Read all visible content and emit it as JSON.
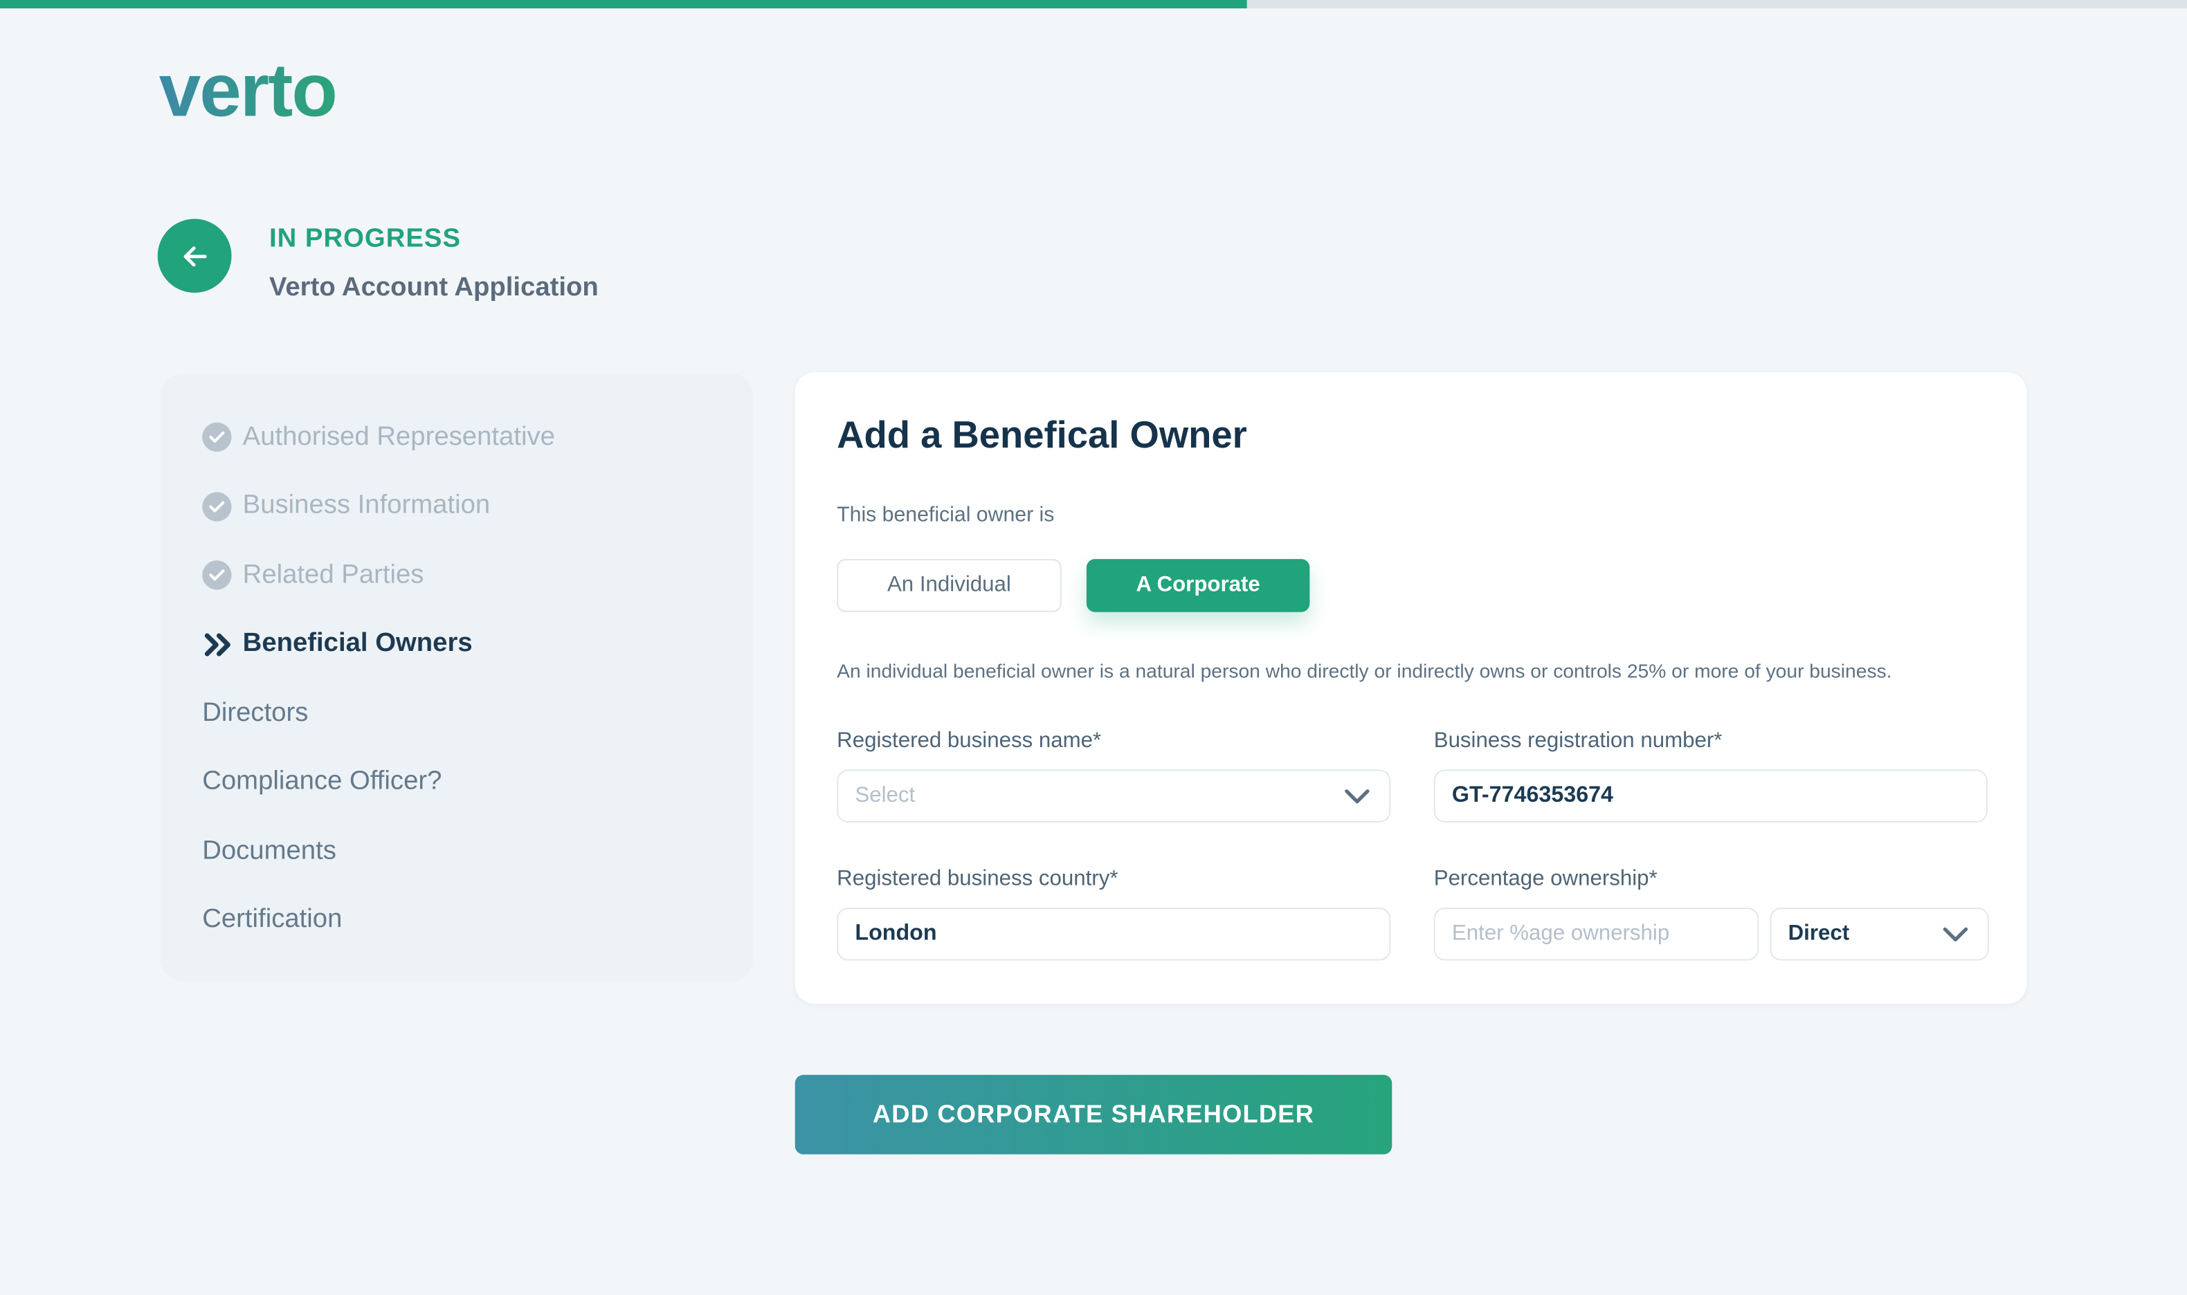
{
  "colors": {
    "accent_green": "#21a37c",
    "progress_track": "#dce3e9",
    "logo_gradient_start": "#3e89a6",
    "logo_gradient_end": "#2ba478",
    "cta_gradient_start": "#3b93a6",
    "cta_gradient_end": "#27a47c",
    "active_step_text": "#1d3a52",
    "completed_step_text": "#a9b6c2"
  },
  "progress": {
    "percent": 57
  },
  "brand": {
    "logo_text": "verto"
  },
  "header": {
    "status": "IN PROGRESS",
    "title": "Verto Account Application",
    "back_icon": "arrow-left"
  },
  "sidebar": {
    "items": [
      {
        "label": "Authorised Representative",
        "state": "completed",
        "icon": "check-circle"
      },
      {
        "label": "Business Information",
        "state": "completed",
        "icon": "check-circle"
      },
      {
        "label": "Related Parties",
        "state": "completed",
        "icon": "check-circle"
      },
      {
        "label": "Beneficial Owners",
        "state": "current",
        "icon": "double-chevron-right"
      },
      {
        "label": "Directors",
        "state": "upcoming",
        "icon": ""
      },
      {
        "label": "Compliance Officer?",
        "state": "upcoming",
        "icon": ""
      },
      {
        "label": "Documents",
        "state": "upcoming",
        "icon": ""
      },
      {
        "label": "Certification",
        "state": "upcoming",
        "icon": ""
      }
    ]
  },
  "panel": {
    "title": "Add a Benefical Owner",
    "owner_type_label": "This beneficial owner is",
    "owner_type_options": [
      {
        "label": "An Individual",
        "selected": false
      },
      {
        "label": "A Corporate",
        "selected": true
      }
    ],
    "helper_text": "An individual beneficial owner is a natural person who directly or indirectly owns or controls 25% or more of your business.",
    "fields": {
      "registered_business_name": {
        "label": "Registered business name*",
        "placeholder": "Select"
      },
      "business_registration_number": {
        "label": "Business registration number*",
        "value": "GT-7746353674"
      },
      "registered_business_country": {
        "label": "Registered business country*",
        "value": "London"
      },
      "percentage_ownership": {
        "label": "Percentage ownership*",
        "placeholder": "Enter %age ownership"
      },
      "ownership_type": {
        "value": "Direct"
      }
    }
  },
  "cta": {
    "label": "ADD CORPORATE SHAREHOLDER"
  }
}
